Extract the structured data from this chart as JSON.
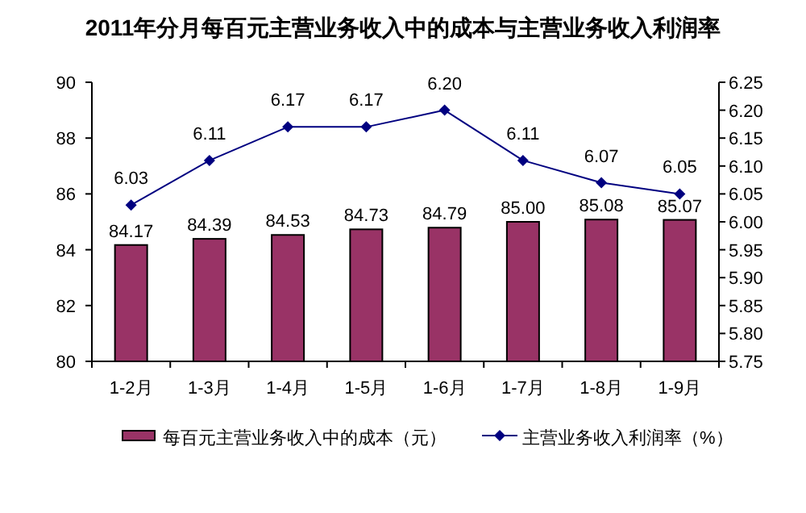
{
  "chart_data": {
    "type": "bar",
    "title": "2011年分月每百元主营业务收入中的成本与主营业务收入利润率",
    "categories": [
      "1-2月",
      "1-3月",
      "1-4月",
      "1-5月",
      "1-6月",
      "1-7月",
      "1-8月",
      "1-9月"
    ],
    "series": [
      {
        "name": "每百元主营业务收入中的成本（元）",
        "color": "#993366",
        "values": [
          84.17,
          84.39,
          84.53,
          84.73,
          84.79,
          85.0,
          85.08,
          85.07
        ],
        "value_labels": [
          "84.17",
          "84.39",
          "84.53",
          "84.73",
          "84.79",
          "85.00",
          "85.08",
          "85.07"
        ]
      },
      {
        "name": "主营业务收入利润率（%）",
        "type": "line",
        "axis": "y2",
        "color": "#000080",
        "marker": "diamond",
        "values": [
          6.03,
          6.11,
          6.17,
          6.17,
          6.2,
          6.11,
          6.07,
          6.05
        ],
        "value_labels": [
          "6.03",
          "6.11",
          "6.17",
          "6.17",
          "6.20",
          "6.11",
          "6.07",
          "6.05"
        ]
      }
    ],
    "ylim": [
      80,
      90
    ],
    "yticks": [
      80,
      82,
      84,
      86,
      88,
      90
    ],
    "y2lim": [
      5.75,
      6.25
    ],
    "y2ticks": [
      5.75,
      {
        "value": 5.8,
        "label": "5.80"
      },
      5.85,
      {
        "value": 5.9,
        "label": "5.90"
      },
      5.95,
      {
        "value": 6.0,
        "label": "6.00"
      },
      6.05,
      {
        "value": 6.1,
        "label": "6.10"
      },
      6.15,
      {
        "value": 6.2,
        "label": "6.20"
      },
      6.25
    ],
    "legend": "bottom"
  }
}
